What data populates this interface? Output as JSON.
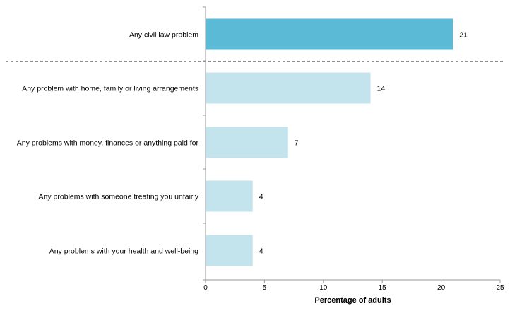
{
  "chart_data": {
    "type": "bar",
    "orientation": "horizontal",
    "title": "",
    "xlabel": "Percentage of adults",
    "ylabel": "",
    "xlim": [
      0,
      25
    ],
    "xticks": [
      0,
      5,
      10,
      15,
      20,
      25
    ],
    "grid": false,
    "categories": [
      "Any civil law problem",
      "Any problem with home, family or living arrangements",
      "Any problems with money, finances or anything paid for",
      "Any problems with someone treating you unfairly",
      "Any problems with your health and well-being"
    ],
    "values": [
      21,
      14,
      7,
      4,
      4
    ],
    "value_labels": [
      "21",
      "14",
      "7",
      "4",
      "4"
    ],
    "bar_colors": [
      "#5bbad5",
      "#c3e3ed",
      "#c3e3ed",
      "#c3e3ed",
      "#c3e3ed"
    ],
    "divider_after_category": 0
  }
}
